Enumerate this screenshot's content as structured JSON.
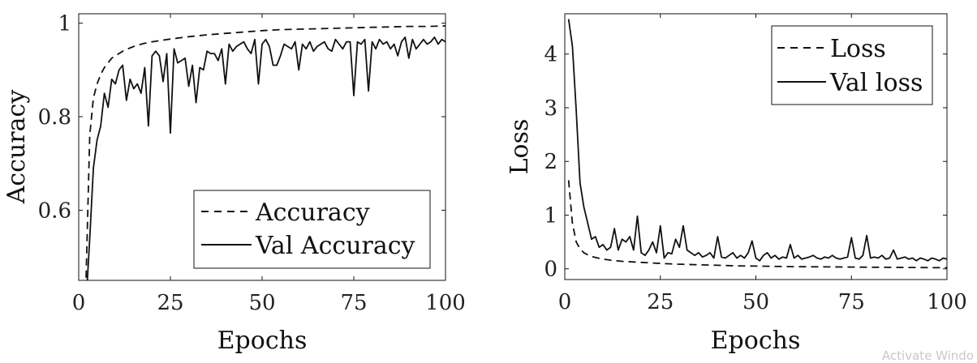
{
  "chart_data": [
    {
      "type": "line",
      "xlabel": "Epochs",
      "ylabel": "Accuracy",
      "xlim": [
        0,
        100
      ],
      "ylim": [
        0.45,
        1.02
      ],
      "xticks": [
        "0",
        "25",
        "50",
        "75",
        "100"
      ],
      "yticks": [
        "0.6",
        "0.8",
        "1"
      ],
      "legend_position": "bottom-right",
      "series": [
        {
          "name": "Accuracy",
          "style": "dashed",
          "x": [
            1,
            2,
            3,
            4,
            5,
            6,
            7,
            8,
            9,
            10,
            12,
            14,
            16,
            18,
            20,
            25,
            30,
            35,
            40,
            45,
            50,
            55,
            60,
            65,
            70,
            75,
            80,
            85,
            90,
            95,
            100
          ],
          "y": [
            0.3,
            0.45,
            0.76,
            0.84,
            0.87,
            0.89,
            0.905,
            0.915,
            0.925,
            0.93,
            0.94,
            0.947,
            0.953,
            0.957,
            0.96,
            0.966,
            0.971,
            0.975,
            0.978,
            0.981,
            0.984,
            0.986,
            0.987,
            0.988,
            0.989,
            0.99,
            0.991,
            0.992,
            0.993,
            0.993,
            0.994
          ]
        },
        {
          "name": "Val Accuracy",
          "style": "solid",
          "x": [
            1,
            2,
            3,
            4,
            5,
            6,
            7,
            8,
            9,
            10,
            11,
            12,
            13,
            14,
            15,
            16,
            17,
            18,
            19,
            20,
            21,
            22,
            23,
            24,
            25,
            26,
            27,
            28,
            29,
            30,
            31,
            32,
            33,
            34,
            35,
            36,
            37,
            38,
            39,
            40,
            41,
            42,
            43,
            44,
            45,
            46,
            47,
            48,
            49,
            50,
            51,
            52,
            53,
            54,
            55,
            56,
            57,
            58,
            59,
            60,
            61,
            62,
            63,
            64,
            65,
            66,
            67,
            68,
            69,
            70,
            71,
            72,
            73,
            74,
            75,
            76,
            77,
            78,
            79,
            80,
            81,
            82,
            83,
            84,
            85,
            86,
            87,
            88,
            89,
            90,
            91,
            92,
            93,
            94,
            95,
            96,
            97,
            98,
            99,
            100
          ],
          "y": [
            0.3,
            0.4,
            0.54,
            0.69,
            0.75,
            0.78,
            0.85,
            0.82,
            0.88,
            0.87,
            0.9,
            0.91,
            0.835,
            0.88,
            0.86,
            0.87,
            0.85,
            0.905,
            0.78,
            0.93,
            0.94,
            0.93,
            0.875,
            0.935,
            0.765,
            0.945,
            0.915,
            0.92,
            0.925,
            0.865,
            0.91,
            0.83,
            0.905,
            0.9,
            0.94,
            0.935,
            0.935,
            0.92,
            0.945,
            0.87,
            0.955,
            0.94,
            0.95,
            0.955,
            0.96,
            0.945,
            0.935,
            0.965,
            0.87,
            0.955,
            0.965,
            0.95,
            0.91,
            0.91,
            0.93,
            0.955,
            0.95,
            0.945,
            0.96,
            0.9,
            0.955,
            0.945,
            0.96,
            0.94,
            0.95,
            0.955,
            0.96,
            0.945,
            0.94,
            0.965,
            0.955,
            0.945,
            0.96,
            0.96,
            0.845,
            0.96,
            0.955,
            0.965,
            0.855,
            0.96,
            0.945,
            0.965,
            0.955,
            0.96,
            0.945,
            0.955,
            0.93,
            0.96,
            0.97,
            0.925,
            0.965,
            0.945,
            0.955,
            0.965,
            0.955,
            0.96,
            0.97,
            0.955,
            0.965,
            0.96
          ]
        }
      ]
    },
    {
      "type": "line",
      "xlabel": "Epochs",
      "ylabel": "Loss",
      "xlim": [
        0,
        100
      ],
      "ylim": [
        -0.2,
        4.75
      ],
      "xticks": [
        "0",
        "25",
        "50",
        "75",
        "100"
      ],
      "yticks": [
        "0",
        "1",
        "2",
        "3",
        "4"
      ],
      "legend_position": "top-right",
      "series": [
        {
          "name": "Loss",
          "style": "dashed",
          "x": [
            1,
            2,
            3,
            4,
            5,
            6,
            7,
            8,
            10,
            12,
            15,
            20,
            25,
            30,
            35,
            40,
            45,
            50,
            60,
            70,
            80,
            90,
            100
          ],
          "y": [
            1.65,
            0.85,
            0.5,
            0.37,
            0.3,
            0.26,
            0.23,
            0.21,
            0.18,
            0.16,
            0.14,
            0.12,
            0.1,
            0.085,
            0.075,
            0.065,
            0.055,
            0.05,
            0.04,
            0.035,
            0.03,
            0.025,
            0.02
          ]
        },
        {
          "name": "Val loss",
          "style": "solid",
          "x": [
            1,
            2,
            3,
            4,
            5,
            6,
            7,
            8,
            9,
            10,
            11,
            12,
            13,
            14,
            15,
            16,
            17,
            18,
            19,
            20,
            21,
            22,
            23,
            24,
            25,
            26,
            27,
            28,
            29,
            30,
            31,
            32,
            33,
            34,
            35,
            36,
            37,
            38,
            39,
            40,
            41,
            42,
            43,
            44,
            45,
            46,
            47,
            48,
            49,
            50,
            51,
            52,
            53,
            54,
            55,
            56,
            57,
            58,
            59,
            60,
            61,
            62,
            63,
            64,
            65,
            66,
            67,
            68,
            69,
            70,
            71,
            72,
            73,
            74,
            75,
            76,
            77,
            78,
            79,
            80,
            81,
            82,
            83,
            84,
            85,
            86,
            87,
            88,
            89,
            90,
            91,
            92,
            93,
            94,
            95,
            96,
            97,
            98,
            99,
            100
          ],
          "y": [
            4.65,
            4.15,
            2.95,
            1.6,
            1.15,
            0.85,
            0.55,
            0.6,
            0.4,
            0.45,
            0.35,
            0.4,
            0.75,
            0.35,
            0.55,
            0.5,
            0.6,
            0.35,
            0.98,
            0.3,
            0.25,
            0.35,
            0.5,
            0.3,
            0.8,
            0.2,
            0.3,
            0.28,
            0.55,
            0.4,
            0.8,
            0.35,
            0.3,
            0.25,
            0.3,
            0.22,
            0.25,
            0.3,
            0.2,
            0.6,
            0.22,
            0.2,
            0.25,
            0.3,
            0.2,
            0.25,
            0.2,
            0.3,
            0.52,
            0.2,
            0.15,
            0.25,
            0.3,
            0.2,
            0.25,
            0.18,
            0.22,
            0.2,
            0.45,
            0.2,
            0.25,
            0.18,
            0.2,
            0.22,
            0.25,
            0.2,
            0.18,
            0.22,
            0.2,
            0.25,
            0.2,
            0.18,
            0.2,
            0.22,
            0.58,
            0.2,
            0.18,
            0.25,
            0.62,
            0.2,
            0.22,
            0.2,
            0.25,
            0.18,
            0.2,
            0.35,
            0.18,
            0.2,
            0.22,
            0.18,
            0.2,
            0.15,
            0.2,
            0.18,
            0.15,
            0.2,
            0.18,
            0.15,
            0.2,
            0.18
          ]
        }
      ]
    }
  ],
  "watermark": "Activate Windo"
}
